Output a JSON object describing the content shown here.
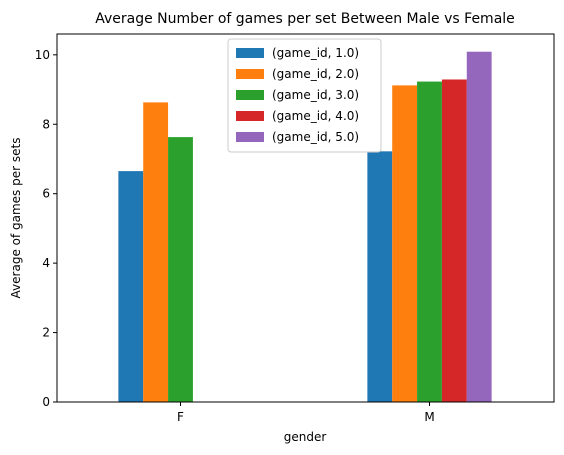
{
  "chart_data": {
    "type": "bar",
    "title": "Average Number of games per set Between Male vs Female",
    "xlabel": "gender",
    "ylabel": "Average of games per sets",
    "categories": [
      "F",
      "M"
    ],
    "ylim": [
      0,
      10.6
    ],
    "yticks": [
      0,
      2,
      4,
      6,
      8,
      10
    ],
    "grid": false,
    "legend_position": "top-center",
    "series": [
      {
        "name": "(game_id, 1.0)",
        "color": "#1f77b4",
        "values": [
          6.65,
          7.22
        ]
      },
      {
        "name": "(game_id, 2.0)",
        "color": "#ff7f0e",
        "values": [
          8.63,
          9.12
        ]
      },
      {
        "name": "(game_id, 3.0)",
        "color": "#2ca02c",
        "values": [
          7.63,
          9.23
        ]
      },
      {
        "name": "(game_id, 4.0)",
        "color": "#d62728",
        "values": [
          null,
          9.29
        ]
      },
      {
        "name": "(game_id, 5.0)",
        "color": "#9467bd",
        "values": [
          null,
          10.09
        ]
      }
    ]
  }
}
